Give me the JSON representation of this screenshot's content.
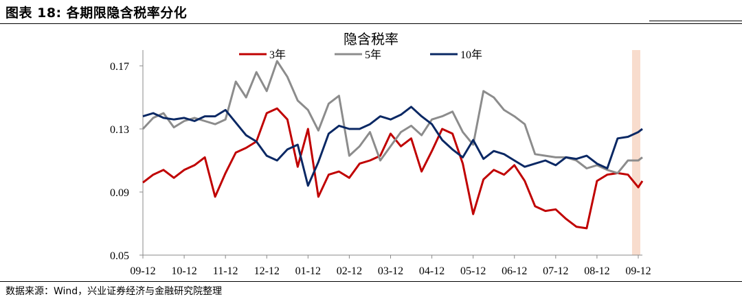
{
  "figure_title": "图表 18:  各期限隐含税率分化",
  "source": "数据来源：Wind，兴业证券经济与金融研究院整理",
  "colors": {
    "s3": "#c00000",
    "s5": "#8c8c8c",
    "s10": "#0a2864",
    "highlight": "#f8dccd"
  },
  "chart_data": {
    "type": "line",
    "title": "隐含税率",
    "xlabel": "",
    "ylabel": "",
    "ylim": [
      0.05,
      0.18
    ],
    "yticks": [
      0.05,
      0.09,
      0.13,
      0.17
    ],
    "ytick_labels": [
      "0.05",
      "0.09",
      "0.13",
      "0.17"
    ],
    "x_range": [
      0,
      12.1
    ],
    "xtick_positions": [
      0,
      1,
      2,
      3,
      4,
      5,
      6,
      7,
      8,
      9,
      10,
      11,
      12
    ],
    "xtick_labels": [
      "09-12",
      "10-12",
      "11-12",
      "12-12",
      "01-12",
      "02-12",
      "03-12",
      "04-12",
      "05-12",
      "06-12",
      "07-12",
      "08-12",
      "09-12"
    ],
    "highlight_region": [
      11.85,
      12.05
    ],
    "legend_position": "top-center",
    "x": [
      0,
      0.25,
      0.5,
      0.75,
      1,
      1.25,
      1.5,
      1.75,
      2,
      2.25,
      2.5,
      2.75,
      3,
      3.25,
      3.5,
      3.75,
      4,
      4.25,
      4.5,
      4.75,
      5,
      5.25,
      5.5,
      5.75,
      6,
      6.25,
      6.5,
      6.75,
      7,
      7.25,
      7.5,
      7.75,
      8,
      8.25,
      8.5,
      8.75,
      9,
      9.25,
      9.5,
      9.75,
      10,
      10.25,
      10.5,
      10.75,
      11,
      11.25,
      11.5,
      11.75,
      12,
      12.1
    ],
    "series": [
      {
        "name": "3年",
        "key": "s3",
        "values": [
          0.096,
          0.101,
          0.104,
          0.099,
          0.104,
          0.107,
          0.112,
          0.087,
          0.102,
          0.115,
          0.118,
          0.122,
          0.14,
          0.143,
          0.136,
          0.106,
          0.13,
          0.087,
          0.101,
          0.103,
          0.099,
          0.108,
          0.11,
          0.113,
          0.127,
          0.119,
          0.124,
          0.103,
          0.116,
          0.13,
          0.127,
          0.108,
          0.076,
          0.098,
          0.104,
          0.101,
          0.107,
          0.097,
          0.081,
          0.078,
          0.079,
          0.073,
          0.068,
          0.067,
          0.097,
          0.101,
          0.102,
          0.101,
          0.093,
          0.097
        ]
      },
      {
        "name": "5年",
        "key": "s5",
        "values": [
          0.13,
          0.137,
          0.14,
          0.131,
          0.135,
          0.137,
          0.135,
          0.133,
          0.136,
          0.16,
          0.15,
          0.166,
          0.154,
          0.173,
          0.163,
          0.148,
          0.142,
          0.129,
          0.146,
          0.151,
          0.113,
          0.119,
          0.128,
          0.11,
          0.119,
          0.128,
          0.132,
          0.126,
          0.136,
          0.138,
          0.141,
          0.128,
          0.12,
          0.154,
          0.15,
          0.142,
          0.138,
          0.133,
          0.114,
          0.113,
          0.112,
          0.112,
          0.11,
          0.105,
          0.107,
          0.104,
          0.102,
          0.11,
          0.11,
          0.112
        ]
      },
      {
        "name": "10年",
        "key": "s10",
        "values": [
          0.138,
          0.14,
          0.137,
          0.136,
          0.137,
          0.135,
          0.138,
          0.138,
          0.142,
          0.134,
          0.126,
          0.122,
          0.113,
          0.11,
          0.117,
          0.12,
          0.094,
          0.109,
          0.127,
          0.132,
          0.13,
          0.13,
          0.133,
          0.138,
          0.136,
          0.139,
          0.144,
          0.138,
          0.133,
          0.123,
          0.117,
          0.112,
          0.123,
          0.111,
          0.116,
          0.114,
          0.11,
          0.106,
          0.108,
          0.11,
          0.107,
          0.112,
          0.111,
          0.113,
          0.108,
          0.105,
          0.124,
          0.125,
          0.128,
          0.13
        ]
      }
    ]
  }
}
